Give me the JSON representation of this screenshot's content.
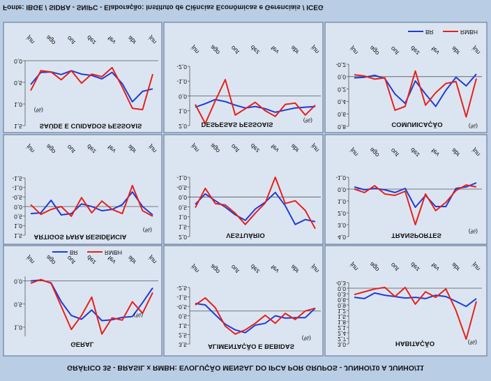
{
  "title": "GRÁFICO 35 - BRASIL x RMBH: EVOLUÇÃO MENSAL DO IPCA POR GRUPOS - JUNHO/10 A JUNHO/11",
  "source": "Fonte: IBGE / SIDRA - SNIPC - Elaboração: Instituto de Ciências Econômicas e Gerenciais / ICEG",
  "chart_data": [
    {
      "type": "line",
      "title": "GERAL",
      "unit": "(%)",
      "legend": true,
      "categories": [
        "jun",
        null,
        "ago",
        null,
        "out",
        null,
        "dez",
        null,
        "fev",
        null,
        "abr",
        null,
        "jun"
      ],
      "ylim": [
        -0.1,
        1.2
      ],
      "yticks": [
        {
          "value": 0,
          "label": "0,0"
        },
        {
          "value": 0.5,
          "label": "0,5"
        },
        {
          "value": 1.0,
          "label": "1,0"
        }
      ],
      "series": [
        {
          "name": "BR",
          "color": "#1f3cd6",
          "values": [
            0.0,
            -0.02,
            0.04,
            0.45,
            0.75,
            0.83,
            0.63,
            0.86,
            0.84,
            0.79,
            0.77,
            0.47,
            0.15
          ]
        },
        {
          "name": "RMBH",
          "color": "#e8201a",
          "values": [
            0.05,
            -0.03,
            0.05,
            0.55,
            1.05,
            0.75,
            0.35,
            1.15,
            0.8,
            0.85,
            0.45,
            0.7,
            0.25
          ]
        }
      ]
    },
    {
      "type": "line",
      "title": "ALIMENTAÇÃO E BEBIDAS",
      "unit": "(%)",
      "categories": [
        "jun",
        null,
        "ago",
        null,
        "out",
        null,
        "dez",
        null,
        "fev",
        null,
        "abr",
        null,
        "jun"
      ],
      "ylim": [
        -2.5,
        3.5
      ],
      "yticks": [
        {
          "value": -2.5,
          "label": "-2,5"
        },
        {
          "value": -1.5,
          "label": "-1,5"
        },
        {
          "value": -0.5,
          "label": "-0,5"
        },
        {
          "value": 0.5,
          "label": "0,5"
        },
        {
          "value": 1.5,
          "label": "1,5"
        },
        {
          "value": 2.5,
          "label": "2,5"
        },
        {
          "value": 3.5,
          "label": "3,5"
        }
      ],
      "series": [
        {
          "color": "#1f3cd6",
          "values": [
            -0.8,
            -0.65,
            0.4,
            1.4,
            2.0,
            2.3,
            1.5,
            1.3,
            0.5,
            0.75,
            0.7,
            0.7,
            -0.3
          ]
        },
        {
          "color": "#e8201a",
          "values": [
            -0.65,
            -1.4,
            -0.35,
            1.6,
            2.45,
            2.0,
            1.3,
            0.45,
            1.3,
            0.25,
            0.9,
            0.0,
            -0.3
          ]
        }
      ]
    },
    {
      "type": "line",
      "title": "HABITAÇÃO",
      "unit": "(%)",
      "categories": [
        "jun",
        null,
        "ago",
        null,
        "out",
        null,
        "dez",
        null,
        "fev",
        null,
        "abr",
        null,
        "jun"
      ],
      "ylim": [
        -0.3,
        3.0
      ],
      "yticks": [
        {
          "value": -0.3,
          "label": "-0,3"
        },
        {
          "value": 0,
          "label": "0,0"
        },
        {
          "value": 0.3,
          "label": "0,3"
        },
        {
          "value": 0.6,
          "label": "0,6"
        },
        {
          "value": 0.9,
          "label": "0,9"
        },
        {
          "value": 1.2,
          "label": "1,2"
        },
        {
          "value": 1.5,
          "label": "1,5"
        },
        {
          "value": 1.8,
          "label": "1,8"
        },
        {
          "value": 2.1,
          "label": "2,1"
        },
        {
          "value": 2.4,
          "label": "2,4"
        },
        {
          "value": 2.7,
          "label": "2,7"
        },
        {
          "value": 3.0,
          "label": "3,0"
        }
      ],
      "series": [
        {
          "color": "#1f3cd6",
          "values": [
            0.49,
            0.56,
            0.26,
            0.38,
            0.45,
            0.53,
            0.49,
            0.56,
            0.38,
            0.45,
            0.71,
            0.98,
            0.56
          ]
        },
        {
          "color": "#e8201a",
          "values": [
            0.34,
            0.19,
            0.04,
            -0.04,
            0.45,
            -0.04,
            0.86,
            0.19,
            0.49,
            0.04,
            1.2,
            2.74,
            0.71
          ]
        }
      ]
    },
    {
      "type": "line",
      "title": "ARTIGOS PARA RESIDÊNCIA",
      "unit": "(%)",
      "categories": [
        "jun",
        null,
        "ago",
        null,
        "out",
        null,
        "dez",
        null,
        "fev",
        null,
        "abr",
        null,
        "jun"
      ],
      "ylim": [
        -1.5,
        1.5
      ],
      "yticks": [
        {
          "value": -1.5,
          "label": "-1,5"
        },
        {
          "value": -1.0,
          "label": "-1,0"
        },
        {
          "value": -0.5,
          "label": "-0,5"
        },
        {
          "value": 0,
          "label": "0,0"
        },
        {
          "value": 0.5,
          "label": "0,5"
        },
        {
          "value": 1.0,
          "label": "1,0"
        },
        {
          "value": 1.5,
          "label": "1,5"
        }
      ],
      "series": [
        {
          "color": "#1f3cd6",
          "values": [
            0.37,
            0.33,
            -0.33,
            0.44,
            0.37,
            -0.14,
            0.0,
            0.22,
            0.15,
            -0.1,
            -0.77,
            0.0,
            0.44
          ]
        },
        {
          "color": "#e8201a",
          "values": [
            -0.1,
            0.41,
            0.15,
            0.0,
            0.51,
            -0.47,
            0.33,
            -0.29,
            0.15,
            0.37,
            -1.1,
            0.22,
            0.51
          ]
        }
      ]
    },
    {
      "type": "line",
      "title": "VESTUÁRIO",
      "categories": [
        "jun",
        null,
        "ago",
        null,
        "out",
        null,
        "dez",
        null,
        "fev",
        null,
        "abr",
        null,
        "jun"
      ],
      "ylim": [
        -1.0,
        2.0
      ],
      "yticks": [
        {
          "value": -1.0,
          "label": "-1,0"
        },
        {
          "value": -0.5,
          "label": "-0,5"
        },
        {
          "value": 0,
          "label": "0,0"
        },
        {
          "value": 0.5,
          "label": "0,5"
        },
        {
          "value": 1.0,
          "label": "1,0"
        },
        {
          "value": 1.5,
          "label": "1,5"
        },
        {
          "value": 2.0,
          "label": "2,0"
        }
      ],
      "series": [
        {
          "color": "#1f3cd6",
          "values": [
            0.37,
            -0.16,
            0.19,
            0.51,
            0.9,
            1.18,
            0.61,
            0.26,
            -0.23,
            0.44,
            1.39,
            1.14,
            1.25
          ]
        },
        {
          "color": "#e8201a",
          "values": [
            0.54,
            -0.44,
            0.33,
            0.4,
            0.82,
            1.39,
            0.82,
            0.3,
            -1.0,
            0.33,
            0.19,
            0.68,
            1.6
          ]
        }
      ]
    },
    {
      "type": "line",
      "title": "TRANSPORTES",
      "unit": "(%)",
      "categories": [
        "jun",
        null,
        "ago",
        null,
        "out",
        null,
        "dez",
        null,
        "fev",
        null,
        "abr",
        null,
        "jun"
      ],
      "ylim": [
        -1.0,
        4.0
      ],
      "yticks": [
        {
          "value": -1.0,
          "label": "-1,0"
        },
        {
          "value": 0,
          "label": "0,0"
        },
        {
          "value": 1.0,
          "label": "1,0"
        },
        {
          "value": 2.0,
          "label": "2,0"
        },
        {
          "value": 3.0,
          "label": "3,0"
        },
        {
          "value": 4.0,
          "label": "4,0"
        }
      ],
      "series": [
        {
          "color": "#1f3cd6",
          "values": [
            -0.18,
            0.06,
            -0.06,
            0.06,
            0.29,
            -0.06,
            1.53,
            0.53,
            1.47,
            1.47,
            -0.06,
            -0.18,
            -0.53
          ]
        },
        {
          "color": "#e8201a",
          "values": [
            0.0,
            0.29,
            -0.29,
            0.41,
            0.53,
            0.18,
            3.0,
            0.41,
            1.82,
            1.12,
            0.12,
            -0.35,
            -0.18
          ]
        }
      ]
    },
    {
      "type": "line",
      "title": "SAÚDE E CUIDADOS PESSOAIS",
      "unit": "(%)",
      "categories": [
        "jun",
        null,
        "ago",
        null,
        "out",
        null,
        "dez",
        null,
        "fev",
        null,
        "abr",
        null,
        "jun"
      ],
      "ylim": [
        0,
        1.5
      ],
      "yticks": [
        {
          "value": 0,
          "label": "0,0"
        },
        {
          "value": 0.5,
          "label": "0,5"
        },
        {
          "value": 1.0,
          "label": "1,0"
        },
        {
          "value": 1.5,
          "label": "1,5"
        }
      ],
      "series": [
        {
          "color": "#1f3cd6",
          "values": [
            0.55,
            0.27,
            0.26,
            0.32,
            0.23,
            0.31,
            0.34,
            0.42,
            0.27,
            0.53,
            0.95,
            0.71,
            0.65
          ]
        },
        {
          "color": "#e8201a",
          "values": [
            0.69,
            0.23,
            0.26,
            0.44,
            0.23,
            0.52,
            0.31,
            0.37,
            0.16,
            0.61,
            1.1,
            1.13,
            0.31
          ]
        }
      ]
    },
    {
      "type": "line",
      "title": "DESPESAS PESSOAIS",
      "unit": "(%)",
      "categories": [
        "jun",
        null,
        "ago",
        null,
        "out",
        null,
        "dez",
        null,
        "fev",
        null,
        "abr",
        null,
        "jun"
      ],
      "ylim": [
        -2.0,
        2.0
      ],
      "yticks": [
        {
          "value": -2.0,
          "label": "-2,0"
        },
        {
          "value": -1.0,
          "label": "-1,0"
        },
        {
          "value": 0,
          "label": "0,0"
        },
        {
          "value": 1.0,
          "label": "1,0"
        },
        {
          "value": 2.0,
          "label": "2,0"
        }
      ],
      "series": [
        {
          "color": "#1f3cd6",
          "values": [
            0.76,
            0.52,
            0.24,
            0.38,
            0.62,
            0.81,
            0.71,
            0.86,
            1.1,
            0.95,
            0.81,
            0.76,
            0.71
          ]
        },
        {
          "color": "#e8201a",
          "values": [
            0.57,
            1.86,
            0.33,
            -1.1,
            1.29,
            0.86,
            0.43,
            1.0,
            1.38,
            0.57,
            0.48,
            1.29,
            0.62
          ]
        }
      ]
    },
    {
      "type": "line",
      "title": "COMUNICAÇÃO",
      "unit": "(%)",
      "legend": true,
      "categories": [
        "jun",
        null,
        "ago",
        null,
        "out",
        null,
        "dez",
        null,
        "fev",
        null,
        "abr",
        null,
        "jun"
      ],
      "ylim": [
        -0.2,
        0.8
      ],
      "yticks": [
        {
          "value": -0.2,
          "label": "-0,2"
        },
        {
          "value": 0,
          "label": "0,0"
        },
        {
          "value": 0.2,
          "label": "0,2"
        },
        {
          "value": 0.4,
          "label": "0,4"
        },
        {
          "value": 0.6,
          "label": "0,6"
        },
        {
          "value": 0.8,
          "label": "0,8"
        }
      ],
      "series": [
        {
          "name": "BR",
          "color": "#1f3cd6",
          "values": [
            0.02,
            0.01,
            -0.02,
            0.03,
            0.28,
            0.43,
            0.07,
            0.28,
            0.48,
            0.22,
            0.01,
            0.15,
            -0.04
          ]
        },
        {
          "name": "RMBH",
          "color": "#e8201a",
          "values": [
            -0.03,
            -0.01,
            0.04,
            0.02,
            0.54,
            0.48,
            -0.09,
            0.46,
            0.26,
            0.11,
            0.08,
            0.65,
            0.03
          ]
        }
      ]
    }
  ]
}
